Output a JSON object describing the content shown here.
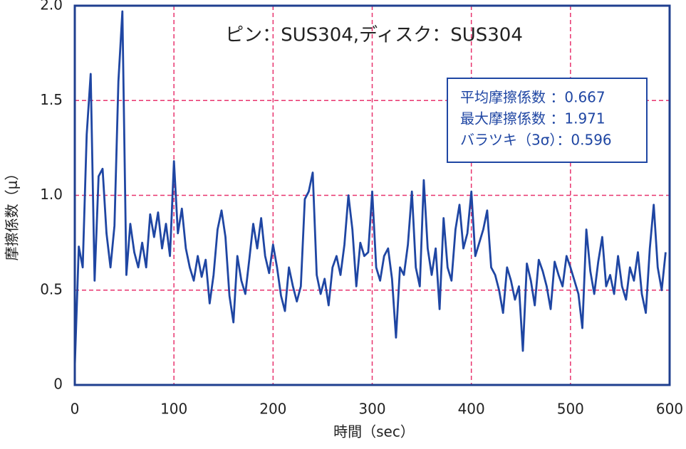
{
  "chart_data": {
    "type": "line",
    "title": "ピン：SUS304,ディスク：SUS304",
    "annotations": [
      "平均摩擦係数 ：0.667",
      "最大摩擦係数 ：1.971",
      "バラツキ（3σ）：0.596"
    ],
    "x_label": "時間（sec）",
    "y_label": "摩擦係数（μ）",
    "xlim": [
      0,
      600
    ],
    "xticks": [
      0,
      100,
      200,
      300,
      400,
      500,
      600
    ],
    "ylim": [
      0,
      2
    ],
    "yticks": [
      0,
      0.5,
      {
        "value": 1,
        "label": "1.0"
      },
      1.5,
      {
        "value": 2,
        "label": "2.0"
      }
    ],
    "grid": true,
    "grid_color": "#e8336e",
    "x": [
      0,
      4,
      8,
      12,
      16,
      20,
      24,
      28,
      32,
      36,
      40,
      44,
      48,
      52,
      56,
      60,
      64,
      68,
      72,
      76,
      80,
      84,
      88,
      92,
      96,
      100,
      104,
      108,
      112,
      116,
      120,
      124,
      128,
      132,
      136,
      140,
      144,
      148,
      152,
      156,
      160,
      164,
      168,
      172,
      176,
      180,
      184,
      188,
      192,
      196,
      200,
      204,
      208,
      212,
      216,
      220,
      224,
      228,
      232,
      236,
      240,
      244,
      248,
      252,
      256,
      260,
      264,
      268,
      272,
      276,
      280,
      284,
      288,
      292,
      296,
      300,
      304,
      308,
      312,
      316,
      320,
      324,
      328,
      332,
      336,
      340,
      344,
      348,
      352,
      356,
      360,
      364,
      368,
      372,
      376,
      380,
      384,
      388,
      392,
      396,
      400,
      404,
      408,
      412,
      416,
      420,
      424,
      428,
      432,
      436,
      440,
      444,
      448,
      452,
      456,
      460,
      464,
      468,
      472,
      476,
      480,
      484,
      488,
      492,
      496,
      500,
      504,
      508,
      512,
      516,
      520,
      524,
      528,
      532,
      536,
      540,
      544,
      548,
      552,
      556,
      560,
      564,
      568,
      572,
      576,
      580,
      584,
      588,
      592,
      596
    ],
    "series": [
      {
        "name": "摩擦係数",
        "color": "#1f46a3",
        "values": [
          0.1,
          0.73,
          0.62,
          1.32,
          1.64,
          0.55,
          1.1,
          1.14,
          0.8,
          0.62,
          0.84,
          1.6,
          1.97,
          0.58,
          0.85,
          0.7,
          0.62,
          0.75,
          0.62,
          0.9,
          0.78,
          0.91,
          0.72,
          0.85,
          0.68,
          1.18,
          0.8,
          0.93,
          0.72,
          0.62,
          0.55,
          0.68,
          0.57,
          0.66,
          0.43,
          0.58,
          0.82,
          0.92,
          0.78,
          0.47,
          0.33,
          0.68,
          0.55,
          0.48,
          0.66,
          0.85,
          0.72,
          0.88,
          0.68,
          0.59,
          0.74,
          0.62,
          0.47,
          0.39,
          0.62,
          0.52,
          0.44,
          0.52,
          0.98,
          1.02,
          1.12,
          0.58,
          0.48,
          0.56,
          0.42,
          0.62,
          0.68,
          0.58,
          0.74,
          1.0,
          0.82,
          0.52,
          0.75,
          0.68,
          0.7,
          1.02,
          0.62,
          0.55,
          0.68,
          0.72,
          0.56,
          0.25,
          0.62,
          0.58,
          0.74,
          1.02,
          0.62,
          0.52,
          1.08,
          0.72,
          0.58,
          0.72,
          0.4,
          0.88,
          0.62,
          0.55,
          0.82,
          0.95,
          0.72,
          0.8,
          1.02,
          0.68,
          0.75,
          0.82,
          0.92,
          0.62,
          0.58,
          0.5,
          0.38,
          0.62,
          0.55,
          0.45,
          0.52,
          0.18,
          0.64,
          0.55,
          0.42,
          0.66,
          0.6,
          0.52,
          0.4,
          0.65,
          0.58,
          0.52,
          0.68,
          0.62,
          0.55,
          0.48,
          0.3,
          0.82,
          0.6,
          0.48,
          0.65,
          0.78,
          0.52,
          0.58,
          0.48,
          0.68,
          0.52,
          0.45,
          0.62,
          0.55,
          0.7,
          0.48,
          0.38,
          0.72,
          0.95,
          0.62,
          0.5,
          0.7
        ]
      }
    ]
  }
}
